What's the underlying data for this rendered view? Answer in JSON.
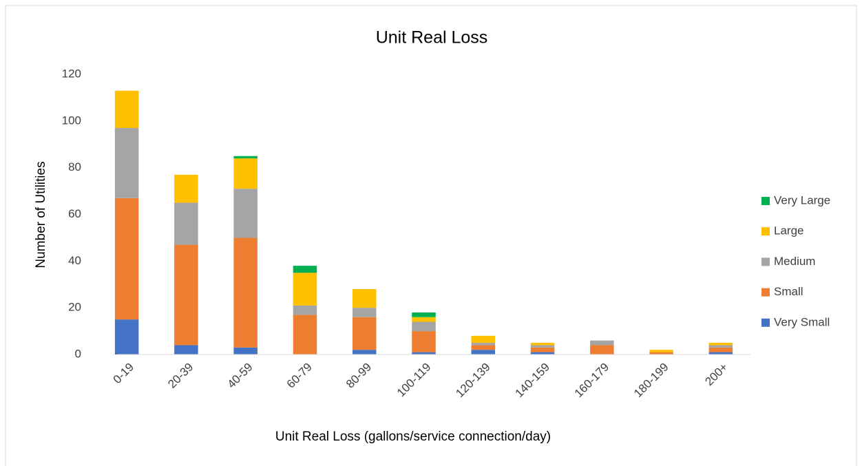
{
  "chart_data": {
    "type": "stacked_bar",
    "title": "Unit Real Loss",
    "x_label": "Unit Real Loss (gallons/service connection/day)",
    "y_label": "Number of Utilities",
    "categories": [
      "0-19",
      "20-39",
      "40-59",
      "60-79",
      "80-99",
      "100-119",
      "120-139",
      "140-159",
      "160-179",
      "180-199",
      "200+"
    ],
    "series": [
      {
        "name": "Very Small",
        "color": "#4472c4",
        "values": [
          15,
          4,
          3,
          0,
          2,
          1,
          2,
          1,
          0,
          0,
          1
        ]
      },
      {
        "name": "Small",
        "color": "#ed7d31",
        "values": [
          52,
          43,
          47,
          17,
          14,
          9,
          2,
          2,
          4,
          1,
          2
        ]
      },
      {
        "name": "Medium",
        "color": "#a5a5a5",
        "values": [
          30,
          18,
          21,
          4,
          4,
          4,
          1,
          1,
          2,
          0,
          1
        ]
      },
      {
        "name": "Large",
        "color": "#ffc000",
        "values": [
          16,
          12,
          13,
          14,
          8,
          2,
          3,
          1,
          0,
          1,
          1
        ]
      },
      {
        "name": "Very Large",
        "color": "#00b050",
        "values": [
          0,
          0,
          1,
          3,
          0,
          2,
          0,
          0,
          0,
          0,
          0
        ]
      }
    ],
    "ylim": [
      0,
      120
    ],
    "yticks": [
      0,
      20,
      40,
      60,
      80,
      100,
      120
    ],
    "grid": false,
    "legend": "right"
  }
}
